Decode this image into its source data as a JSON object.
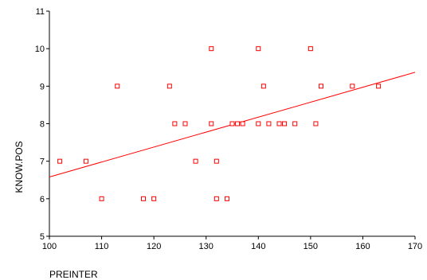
{
  "chart_data": {
    "type": "scatter",
    "title": "",
    "xlabel": "PREINTER",
    "ylabel": "KNOW.POS",
    "xlim": [
      100,
      170
    ],
    "ylim": [
      5,
      11
    ],
    "xticks": [
      100,
      110,
      120,
      130,
      140,
      150,
      160,
      170
    ],
    "yticks": [
      5,
      6,
      7,
      8,
      9,
      10,
      11
    ],
    "grid": false,
    "legend": "none",
    "marker_color": "#ff0000",
    "series": [
      {
        "x": [
          102,
          107,
          110,
          113,
          118,
          120,
          123,
          124,
          126,
          128,
          131,
          131,
          132,
          132,
          134,
          135,
          136,
          137,
          140,
          140,
          141,
          142,
          144,
          145,
          145,
          147,
          150,
          151,
          152,
          158,
          163
        ],
        "y": [
          7,
          7,
          6,
          9,
          6,
          6,
          9,
          8,
          8,
          7,
          10,
          8,
          7,
          6,
          6,
          8,
          8,
          8,
          10,
          8,
          9,
          8,
          8,
          8,
          8,
          8,
          10,
          8,
          9,
          9,
          9
        ]
      }
    ],
    "fit_line": {
      "x": [
        100,
        170
      ],
      "y": [
        6.58,
        9.37
      ]
    }
  }
}
